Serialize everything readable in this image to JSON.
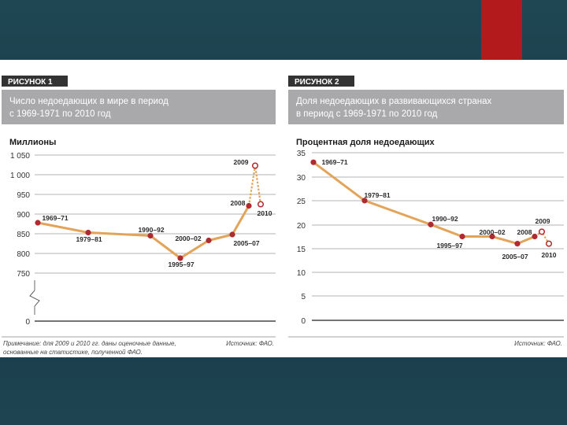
{
  "colors": {
    "background": "#1b404d",
    "accent": "#b21a1c",
    "line": "#e3a45a",
    "point": "#b12a2f",
    "header_dark": "#333333",
    "header_grey": "#a9a9ab"
  },
  "chart_data": [
    {
      "type": "line",
      "figure_label": "РИСУНОК 1",
      "title_lines": [
        "Число недоедающих в мире в период",
        "с 1969-1971 по 2010 год"
      ],
      "ylabel": "Миллионы",
      "yticks": [
        "1 050",
        "1 000",
        "950",
        "900",
        "850",
        "800",
        "750",
        "0"
      ],
      "ylim": [
        750,
        1050
      ],
      "axis_break": true,
      "grid": true,
      "series": [
        {
          "style": "solid",
          "points": [
            {
              "label": "1969–71",
              "value": 878
            },
            {
              "label": "1979–81",
              "value": 853
            },
            {
              "label": "1990–92",
              "value": 845
            },
            {
              "label": "1995–97",
              "value": 788
            },
            {
              "label": "2000–02",
              "value": 833
            },
            {
              "label": "2005–07",
              "value": 848
            },
            {
              "label": "2008",
              "value": 921
            }
          ]
        },
        {
          "style": "dashed",
          "points": [
            {
              "label": "2008",
              "value": 921
            },
            {
              "label": "2009",
              "value": 1023
            },
            {
              "label": "2010",
              "value": 925
            }
          ]
        }
      ],
      "note": [
        "Примечание: для 2009 и 2010 гг. даны оценочные данные,",
        "основанные на статистике, полученной ФАО."
      ],
      "source": "Источник: ФАО."
    },
    {
      "type": "line",
      "figure_label": "РИСУНОК 2",
      "title_lines": [
        "Доля недоедающих в развивающихся странах",
        "в период с 1969-1971 по 2010 год"
      ],
      "ylabel": "Процентная доля недоедающих",
      "yticks": [
        "35",
        "30",
        "25",
        "20",
        "15",
        "10",
        "5",
        "0"
      ],
      "ylim": [
        0,
        35
      ],
      "grid": true,
      "series": [
        {
          "style": "solid",
          "points": [
            {
              "label": "1969–71",
              "value": 33
            },
            {
              "label": "1979–81",
              "value": 25
            },
            {
              "label": "1990–92",
              "value": 20
            },
            {
              "label": "1995–97",
              "value": 17.5
            },
            {
              "label": "2000–02",
              "value": 17.5
            },
            {
              "label": "2005–07",
              "value": 16
            },
            {
              "label": "2008",
              "value": 17.5
            }
          ]
        },
        {
          "style": "dashed",
          "points": [
            {
              "label": "2008",
              "value": 17.5
            },
            {
              "label": "2009",
              "value": 18.5
            },
            {
              "label": "2010",
              "value": 16
            }
          ]
        }
      ],
      "source": "Источник: ФАО."
    }
  ]
}
